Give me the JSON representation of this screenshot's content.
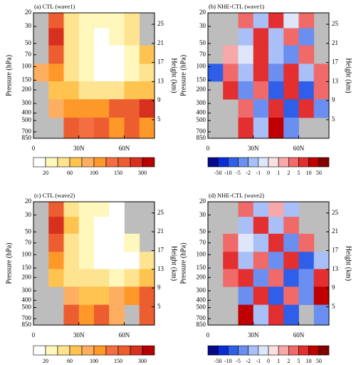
{
  "chart_data": [
    {
      "type": "heatmap",
      "title": "(a) CTL (wave1)",
      "ylabel": "Pressure (hPa)",
      "y2label": "Height (km)",
      "xlim": [
        0,
        80
      ],
      "xticks": [
        0,
        {
          "value": 30,
          "label": "30N"
        },
        {
          "value": 60,
          "label": "60N"
        }
      ],
      "ylim": [
        20,
        850
      ],
      "log_y": true,
      "yticks": [
        20,
        30,
        50,
        70,
        100,
        150,
        200,
        300,
        400,
        500,
        700,
        850
      ],
      "y2lim": [
        27.4,
        1.1
      ],
      "y2ticks": [
        5,
        9,
        13,
        17,
        21,
        25
      ],
      "missing_color": "#bdbdbd",
      "colorbar": {
        "levels": [
          20,
          40,
          60,
          80,
          100,
          120,
          150,
          200,
          300
        ],
        "ticks": [
          20,
          60,
          100,
          150,
          300
        ],
        "colors": [
          "#ffffff",
          "#fff7bc",
          "#fee391",
          "#fec44f",
          "#fdae61",
          "#fe9929",
          "#f46d43",
          "#ec5d2f",
          "#d7301f",
          "#b30000"
        ]
      },
      "field": {
        "lat": [
          5,
          15,
          25,
          35,
          45,
          55,
          65,
          75
        ],
        "p": [
          25,
          40,
          70,
          120,
          200,
          350,
          600
        ],
        "z": [
          [
            null,
            150,
            40,
            30,
            20,
            20,
            40,
            null
          ],
          [
            null,
            200,
            40,
            20,
            10,
            20,
            40,
            null
          ],
          [
            null,
            150,
            40,
            20,
            10,
            10,
            30,
            60
          ],
          [
            80,
            100,
            40,
            20,
            10,
            10,
            20,
            40
          ],
          [
            null,
            60,
            60,
            40,
            40,
            40,
            60,
            60
          ],
          [
            null,
            80,
            100,
            100,
            100,
            150,
            150,
            200
          ],
          [
            null,
            null,
            150,
            120,
            150,
            100,
            150,
            100
          ]
        ]
      }
    },
    {
      "type": "heatmap",
      "title": "(b) NHE-CTL (wave1)",
      "ylabel": "Pressure (hPa)",
      "y2label": "Height (km)",
      "xlim": [
        0,
        80
      ],
      "xticks": [
        0,
        {
          "value": 30,
          "label": "30N"
        },
        {
          "value": 60,
          "label": "60N"
        }
      ],
      "ylim": [
        20,
        850
      ],
      "log_y": true,
      "yticks": [
        20,
        30,
        50,
        70,
        100,
        150,
        200,
        300,
        400,
        500,
        700,
        850
      ],
      "y2lim": [
        27.4,
        1.1
      ],
      "y2ticks": [
        5,
        9,
        13,
        17,
        21,
        25
      ],
      "missing_color": "#bdbdbd",
      "colorbar": {
        "levels": [
          -50,
          -10,
          -5,
          -2,
          -1,
          0,
          1,
          2,
          5,
          10,
          50
        ],
        "ticks": [
          -50,
          -10,
          -5,
          -2,
          -1,
          0,
          1,
          2,
          5,
          10,
          50
        ],
        "colors": [
          "#08088a",
          "#0a2bd8",
          "#2f5fe8",
          "#6a8ff0",
          "#a9bff7",
          "#dde6fb",
          "#fbe0e0",
          "#f7a8a8",
          "#f06a6a",
          "#e32f2f",
          "#c00000",
          "#800000"
        ]
      },
      "field": {
        "lat": [
          5,
          15,
          25,
          35,
          45,
          55,
          65,
          75
        ],
        "p": [
          25,
          40,
          70,
          120,
          200,
          350,
          600
        ],
        "z": [
          [
            null,
            null,
            2,
            -2,
            5,
            -1,
            2,
            null
          ],
          [
            null,
            null,
            -2,
            5,
            -2,
            2,
            -5,
            null
          ],
          [
            null,
            1,
            -1,
            5,
            -2,
            -5,
            2,
            null
          ],
          [
            -10,
            2,
            -2,
            5,
            -5,
            5,
            -2,
            2
          ],
          [
            null,
            5,
            -5,
            2,
            -10,
            5,
            -10,
            2
          ],
          [
            null,
            null,
            2,
            -5,
            5,
            -10,
            5,
            -5
          ],
          [
            null,
            null,
            5,
            -2,
            10,
            -5,
            null,
            null
          ]
        ]
      }
    },
    {
      "type": "heatmap",
      "title": "(c) CTL (wave2)",
      "ylabel": "Pressure (hPa)",
      "y2label": "Height (km)",
      "xlim": [
        0,
        80
      ],
      "xticks": [
        0,
        {
          "value": 30,
          "label": "30N"
        },
        {
          "value": 60,
          "label": "60N"
        }
      ],
      "ylim": [
        20,
        850
      ],
      "log_y": true,
      "yticks": [
        20,
        30,
        50,
        70,
        100,
        150,
        200,
        300,
        400,
        500,
        700,
        850
      ],
      "y2lim": [
        27.4,
        1.1
      ],
      "y2ticks": [
        5,
        9,
        13,
        17,
        21,
        25
      ],
      "missing_color": "#bdbdbd",
      "colorbar": {
        "levels": [
          20,
          40,
          60,
          80,
          100,
          120,
          150,
          200,
          300
        ],
        "ticks": [
          20,
          60,
          100,
          150,
          300
        ],
        "colors": [
          "#ffffff",
          "#fff7bc",
          "#fee391",
          "#fec44f",
          "#fdae61",
          "#fe9929",
          "#f46d43",
          "#ec5d2f",
          "#d7301f",
          "#b30000"
        ]
      },
      "field": {
        "lat": [
          5,
          15,
          25,
          35,
          45,
          55,
          65,
          75
        ],
        "p": [
          25,
          40,
          70,
          120,
          200,
          350,
          600
        ],
        "z": [
          [
            null,
            150,
            40,
            20,
            20,
            10,
            null,
            null
          ],
          [
            null,
            200,
            60,
            20,
            10,
            10,
            null,
            null
          ],
          [
            null,
            150,
            40,
            20,
            10,
            0,
            20,
            null
          ],
          [
            null,
            100,
            40,
            20,
            10,
            0,
            10,
            40
          ],
          [
            null,
            60,
            40,
            40,
            40,
            20,
            40,
            60
          ],
          [
            null,
            null,
            80,
            60,
            60,
            80,
            100,
            150
          ],
          [
            null,
            null,
            150,
            100,
            150,
            80,
            null,
            150
          ]
        ]
      }
    },
    {
      "type": "heatmap",
      "title": "(d) NHE-CTL (wave2)",
      "ylabel": "Pressure (hPa)",
      "y2label": "Height (km)",
      "xlim": [
        0,
        80
      ],
      "xticks": [
        0,
        {
          "value": 30,
          "label": "30N"
        },
        {
          "value": 60,
          "label": "60N"
        }
      ],
      "ylim": [
        20,
        850
      ],
      "log_y": true,
      "yticks": [
        20,
        30,
        50,
        70,
        100,
        150,
        200,
        300,
        400,
        500,
        700,
        850
      ],
      "y2lim": [
        27.4,
        1.1
      ],
      "y2ticks": [
        5,
        9,
        13,
        17,
        21,
        25
      ],
      "missing_color": "#bdbdbd",
      "colorbar": {
        "levels": [
          -50,
          -10,
          -5,
          -2,
          -1,
          0,
          1,
          2,
          5,
          10,
          50
        ],
        "ticks": [
          -50,
          -10,
          -5,
          -2,
          -1,
          0,
          1,
          2,
          5,
          10,
          50
        ],
        "colors": [
          "#08088a",
          "#0a2bd8",
          "#2f5fe8",
          "#6a8ff0",
          "#a9bff7",
          "#dde6fb",
          "#fbe0e0",
          "#f7a8a8",
          "#f06a6a",
          "#e32f2f",
          "#c00000",
          "#800000"
        ]
      },
      "field": {
        "lat": [
          5,
          15,
          25,
          35,
          45,
          55,
          65,
          75
        ],
        "p": [
          25,
          40,
          70,
          120,
          200,
          350,
          600
        ],
        "z": [
          [
            null,
            null,
            2,
            -2,
            1,
            -2,
            null,
            null
          ],
          [
            null,
            null,
            -2,
            5,
            -2,
            2,
            null,
            null
          ],
          [
            null,
            2,
            -1,
            -2,
            5,
            -5,
            2,
            null
          ],
          [
            null,
            5,
            -2,
            2,
            -5,
            5,
            -10,
            -2
          ],
          [
            null,
            2,
            5,
            -5,
            2,
            -10,
            -5,
            5
          ],
          [
            null,
            null,
            -5,
            5,
            -10,
            2,
            -5,
            10
          ],
          [
            null,
            null,
            10,
            -2,
            5,
            -10,
            null,
            -5
          ]
        ]
      }
    }
  ]
}
